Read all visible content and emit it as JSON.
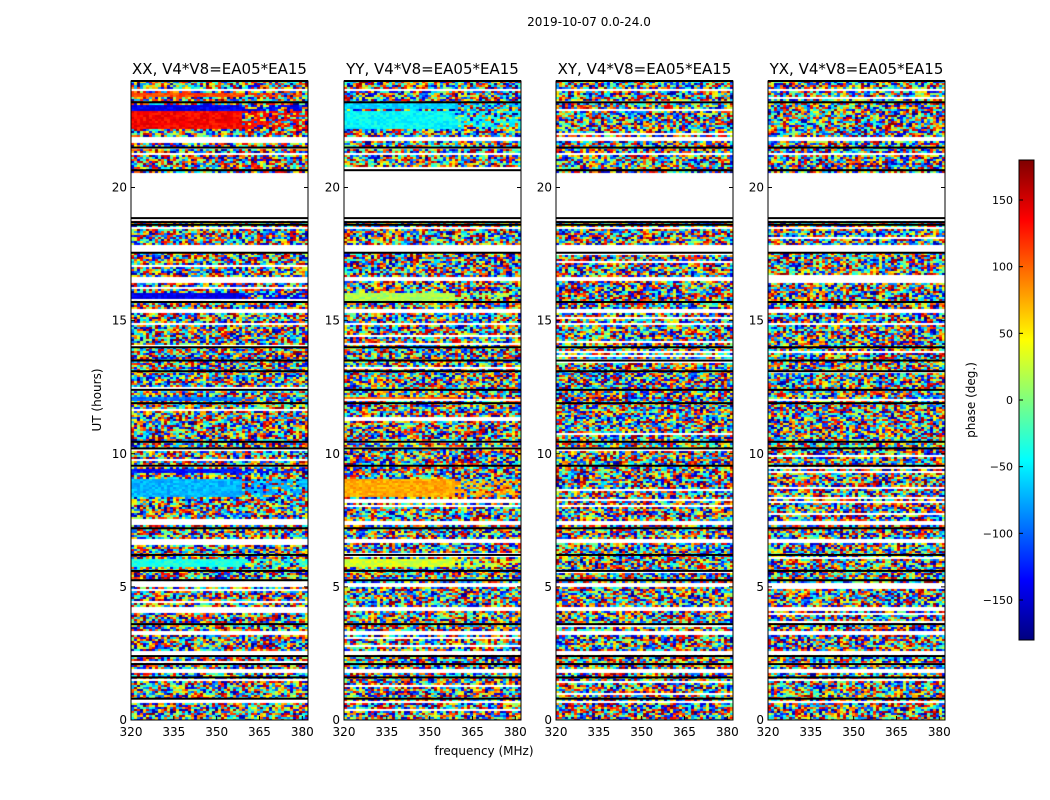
{
  "chart_data": {
    "type": "heatmap",
    "suptitle": "2019-10-07 0.0-24.0",
    "xlabel": "frequency (MHz)",
    "ylabel": "UT (hours)",
    "xlim": [
      320,
      382
    ],
    "ylim": [
      0,
      24
    ],
    "xticks": [
      320,
      335,
      350,
      365,
      380
    ],
    "yticks": [
      0,
      5,
      10,
      15,
      20
    ],
    "panels": [
      {
        "title": "XX, V4*V8=EA05*EA15",
        "coherent_bands": [
          {
            "ut_start": 23.4,
            "ut_end": 23.55,
            "phase": 110
          },
          {
            "ut_start": 22.2,
            "ut_end": 22.9,
            "phase": 135
          },
          {
            "ut_start": 22.9,
            "ut_end": 23.1,
            "phase": -140
          },
          {
            "ut_start": 15.8,
            "ut_end": 16.1,
            "phase": -140
          },
          {
            "ut_start": 12.0,
            "ut_end": 12.15,
            "phase": -95
          },
          {
            "ut_start": 8.4,
            "ut_end": 9.1,
            "phase": -70
          },
          {
            "ut_start": 9.3,
            "ut_end": 9.5,
            "phase": -130
          },
          {
            "ut_start": 5.8,
            "ut_end": 6.05,
            "phase": -35
          }
        ]
      },
      {
        "title": "YY, V4*V8=EA05*EA15",
        "coherent_bands": [
          {
            "ut_start": 23.0,
            "ut_end": 23.2,
            "phase": -60
          },
          {
            "ut_start": 22.2,
            "ut_end": 22.9,
            "phase": -45
          },
          {
            "ut_start": 15.8,
            "ut_end": 16.1,
            "phase": 15
          },
          {
            "ut_start": 12.0,
            "ut_end": 12.15,
            "phase": 100
          },
          {
            "ut_start": 8.4,
            "ut_end": 9.1,
            "phase": 75
          },
          {
            "ut_start": 5.8,
            "ut_end": 6.05,
            "phase": 30
          }
        ]
      },
      {
        "title": "XY, V4*V8=EA05*EA15",
        "coherent_bands": []
      },
      {
        "title": "YX, V4*V8=EA05*EA15",
        "coherent_bands": []
      }
    ],
    "flagged_ranges": [
      [
        20.55,
        18.75
      ],
      [
        18.55,
        18.45
      ],
      [
        17.9,
        17.6
      ],
      [
        16.7,
        16.55
      ],
      [
        15.45,
        15.35
      ],
      [
        14.95,
        14.85
      ],
      [
        7.5,
        7.35
      ],
      [
        6.8,
        6.65
      ],
      [
        5.15,
        5.05
      ],
      [
        4.25,
        4.15
      ],
      [
        3.35,
        3.25
      ],
      [
        2.6,
        2.45
      ],
      [
        1.95,
        1.8
      ],
      [
        0.75,
        0.65
      ],
      [
        23.75,
        23.65
      ],
      [
        21.9,
        21.8
      ],
      [
        21.35,
        21.25
      ]
    ],
    "black_lines": [
      24,
      23.2,
      21.5,
      20.65,
      18.85,
      18.7,
      18.6,
      17.55,
      15.7,
      14.0,
      13.5,
      13.1,
      12.4,
      11.9,
      10.45,
      10.2,
      9.55,
      7.2,
      6.2,
      5.6,
      5.25,
      3.6,
      2.4,
      2.1,
      1.6,
      0.8
    ],
    "colorbar": {
      "label": "phase (deg.)",
      "vmin": -180,
      "vmax": 180,
      "ticks": [
        150,
        100,
        50,
        0,
        -50,
        -100,
        -150
      ],
      "tick_labels": [
        "150",
        "100",
        "50",
        "0",
        "−50",
        "−100",
        "−150"
      ],
      "colormap": "jet"
    }
  }
}
